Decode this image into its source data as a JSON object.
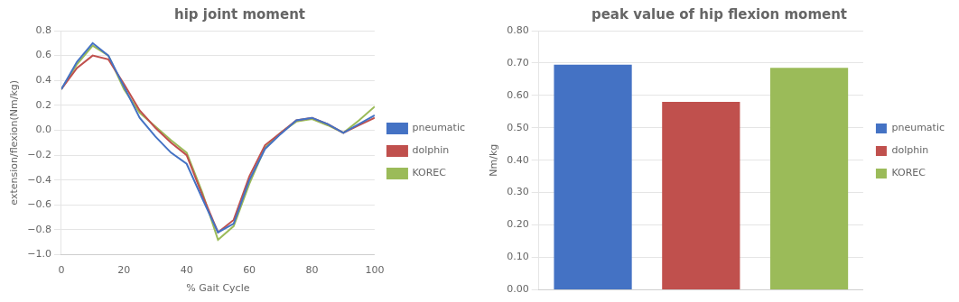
{
  "chart_data": [
    {
      "type": "line",
      "title": "hip joint moment",
      "x_label": "% Gait Cycle",
      "y_label": "extension/flexion(Nm/kg)",
      "x": [
        0,
        5,
        10,
        15,
        20,
        25,
        30,
        35,
        40,
        45,
        50,
        55,
        60,
        65,
        70,
        75,
        80,
        85,
        90,
        95,
        100
      ],
      "series": [
        {
          "name": "pneumatic",
          "color": "#4472C4",
          "values": [
            0.33,
            0.55,
            0.7,
            0.6,
            0.35,
            0.1,
            -0.05,
            -0.18,
            -0.27,
            -0.55,
            -0.82,
            -0.75,
            -0.4,
            -0.15,
            -0.03,
            0.08,
            0.1,
            0.05,
            -0.02,
            0.05,
            0.12
          ]
        },
        {
          "name": "dolphin",
          "color": "#C0504D",
          "values": [
            0.33,
            0.5,
            0.6,
            0.57,
            0.37,
            0.16,
            0.02,
            -0.1,
            -0.2,
            -0.52,
            -0.82,
            -0.72,
            -0.37,
            -0.12,
            -0.02,
            0.08,
            0.1,
            0.05,
            -0.02,
            0.04,
            0.1
          ]
        },
        {
          "name": "KOREC",
          "color": "#9BBB59",
          "values": [
            0.33,
            0.53,
            0.68,
            0.6,
            0.33,
            0.14,
            0.03,
            -0.08,
            -0.18,
            -0.5,
            -0.88,
            -0.77,
            -0.43,
            -0.14,
            -0.02,
            0.07,
            0.09,
            0.04,
            -0.02,
            0.08,
            0.19
          ]
        }
      ],
      "xlim": [
        0,
        100
      ],
      "xticks": [
        0,
        20,
        40,
        60,
        80,
        100
      ],
      "ylim": [
        -1,
        0.8
      ],
      "yticks": [
        {
          "value": -1,
          "label": "−1.0"
        },
        {
          "value": -0.8,
          "label": "−0.8"
        },
        {
          "value": -0.6,
          "label": "−0.6"
        },
        {
          "value": -0.4,
          "label": "−0.4"
        },
        {
          "value": -0.2,
          "label": "−0.2"
        },
        {
          "value": 0,
          "label": "0.0"
        },
        {
          "value": 0.2,
          "label": "0.2"
        },
        {
          "value": 0.4,
          "label": "0.4"
        },
        {
          "value": 0.6,
          "label": "0.6"
        },
        {
          "value": 0.8,
          "label": "0.8"
        }
      ],
      "grid": "y",
      "legend": "right"
    },
    {
      "type": "bar",
      "title": "peak value of hip flexion moment",
      "y_label": "Nm/kg",
      "categories": [
        "pneumatic",
        "dolphin",
        "KOREC"
      ],
      "values": [
        0.695,
        0.58,
        0.685
      ],
      "colors": [
        "#4472C4",
        "#C0504D",
        "#9BBB59"
      ],
      "ylim": [
        0,
        0.8
      ],
      "yticks": [
        {
          "value": 0,
          "label": "0.00"
        },
        {
          "value": 0.1,
          "label": "0.10"
        },
        {
          "value": 0.2,
          "label": "0.20"
        },
        {
          "value": 0.3,
          "label": "0.30"
        },
        {
          "value": 0.4,
          "label": "0.40"
        },
        {
          "value": 0.5,
          "label": "0.50"
        },
        {
          "value": 0.6,
          "label": "0.60"
        },
        {
          "value": 0.7,
          "label": "0.70"
        },
        {
          "value": 0.8,
          "label": "0.80"
        }
      ],
      "tick_labels": "y",
      "grid": "y",
      "legend": "right"
    }
  ]
}
